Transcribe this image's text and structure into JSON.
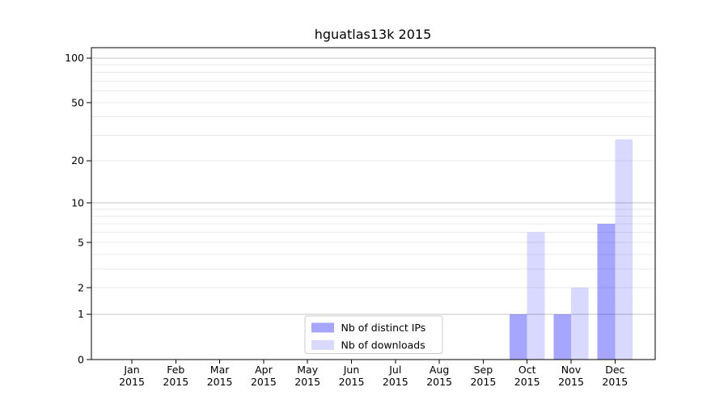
{
  "figure": {
    "title": "hguatlas13k 2015"
  },
  "chart_data": {
    "type": "bar",
    "title": "hguatlas13k 2015",
    "categories": [
      "Jan",
      "Feb",
      "Mar",
      "Apr",
      "May",
      "Jun",
      "Jul",
      "Aug",
      "Sep",
      "Oct",
      "Nov",
      "Dec"
    ],
    "category_year": "2015",
    "series": [
      {
        "name": "Nb of distinct IPs",
        "color": "#0000ff",
        "opacity": 0.35,
        "color_on_white": "#a6a6ff",
        "values": [
          0,
          0,
          0,
          0,
          0,
          0,
          0,
          0,
          0,
          1,
          1,
          7
        ]
      },
      {
        "name": "Nb of downloads",
        "color": "#0000ff",
        "opacity": 0.15,
        "color_on_white": "#d9d9ff",
        "values": [
          0,
          0,
          0,
          0,
          0,
          0,
          0,
          0,
          0,
          6,
          2,
          28
        ]
      }
    ],
    "xlabel": "",
    "ylabel": "",
    "yscale": "log(1+y)",
    "ylim": [
      0,
      116
    ],
    "ytick_labels": [
      0,
      1,
      2,
      5,
      10,
      20,
      50,
      100
    ],
    "major_gridlines": [
      1,
      10,
      100
    ],
    "minor_gridlines": [
      2,
      3,
      4,
      5,
      6,
      7,
      8,
      9,
      20,
      30,
      40,
      50,
      60,
      70,
      80,
      90
    ],
    "grid": true,
    "legend": {
      "position": "lower-center",
      "entries": [
        "Nb of distinct IPs",
        "Nb of downloads"
      ]
    }
  },
  "style": {
    "background": "#ffffff",
    "axis_color": "#000000",
    "major_grid_color": "#c4c4c4",
    "minor_grid_color": "#eaeaea",
    "legend_border_color": "#cccccc",
    "legend_background": "#ffffff",
    "text_color": "#000000"
  }
}
